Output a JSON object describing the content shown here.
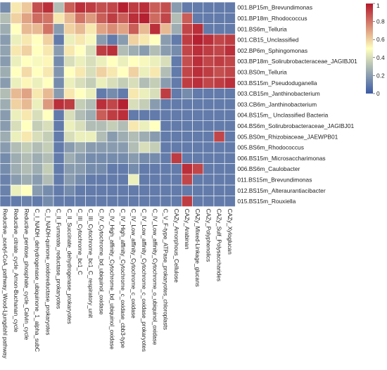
{
  "chart_data": {
    "type": "heatmap",
    "title": "",
    "xlabel": "",
    "ylabel": "",
    "rows": [
      "001.BP15m_Brevundimonas",
      "001.BP18m_Rhodococcus",
      "001.BS6m_Telluria",
      "001.CB15_Unclassified",
      "002.BP6m_Sphingomonas",
      "003.BP18m_Solirubrobacteraceae_JAGIBJ01",
      "003.BS0m_Telluria",
      "003.BS15m_Pseudoduganella",
      "003.CB15m_Janthinobacterium",
      "003.CB6m_Janthinobacterium",
      "004.BS15m_ Unclassified Bacteria",
      "004.BS6m_Solirubrobacteraceae_JAGIBJ01",
      "005.BS0m_Rhizobiaceae_JAEWPB01",
      "005.BS6m_Rhodococcus",
      "006.BS15m_Microsaccharimonas",
      "006.BS6m_Caulobacter",
      "011.BS15m_Brevundimonas",
      "012.BS15m_Alteraurantiacibacter",
      "015.BS15m_Rouxiella"
    ],
    "columns": [
      "Reductive_acetyl-CoA_pathway_Wood-Ljungdahl pathway",
      "Reductive_citrate_cycle_Arnon-Buchanan_cycle",
      "Reductive_pentose_phosphate_cycle_Calvin_cycle",
      "C_I_NADH_dehydrogenase_ubiquinone_1_alpha_subC",
      "C_I_NADH-quinone_oxidoreductase_prokaryotes",
      "C_II_Fumarate_reductase_prokaryotes",
      "C_II_Succinate_dehydrogenase_prokaryotes",
      "C_III_Cytochrome_bc1_C",
      "C_III_Cytochrome_bc1_C_respiratory_unit",
      "C_IV_Cytochrome_bd_ubiquinol_oxidase",
      "C_IV_High_affinity_Cytochrome_bd_ubiquinol_oxidase",
      "C_IV_High_affinity_Cytochrome_c_oxidase_cbb3-type",
      "C_IV_Low_affinity_Cytochrome_c_oxidase",
      "C_IV_Low_affinity_Cytochrome_c_oxidase_prokaryotes",
      "C_IV_Low_affinity_Cytochrome_o_ubiquinol_oxidase",
      "C_V_F-type_ATPase_prokaryotes_chloroplasts",
      "CAZy_Amorphous_Cellulose",
      "CAZy_Arabinan",
      "CAZy_Mixed-Linkage_glucans",
      "CAZy_Polyphenolics",
      "CAZy_Sulf_Polysaccharides",
      "CAZy_Xyloglucan"
    ],
    "values": [
      [
        0.15,
        0.55,
        0.62,
        0.88,
        0.95,
        0.3,
        0.85,
        0.95,
        0.92,
        0.88,
        0.9,
        0.98,
        0.92,
        0.95,
        0.85,
        0.88,
        0.2,
        0.1,
        0.1,
        0.1,
        0.1,
        0.1
      ],
      [
        0.3,
        0.6,
        0.7,
        0.82,
        0.8,
        0.55,
        0.65,
        0.8,
        0.72,
        0.85,
        0.92,
        0.85,
        0.95,
        0.98,
        0.82,
        0.9,
        0.3,
        0.85,
        0.1,
        0.1,
        0.1,
        0.1
      ],
      [
        0.25,
        0.5,
        0.65,
        0.65,
        0.8,
        0.2,
        0.6,
        0.65,
        0.55,
        0.7,
        0.75,
        0.7,
        0.85,
        0.65,
        0.95,
        0.65,
        0.25,
        0.9,
        0.95,
        0.1,
        0.1,
        0.1
      ],
      [
        0.2,
        0.45,
        0.55,
        0.5,
        0.6,
        0.1,
        0.45,
        0.55,
        0.48,
        0.2,
        0.1,
        0.2,
        0.6,
        0.55,
        0.5,
        0.2,
        0.1,
        0.92,
        0.98,
        0.95,
        0.9,
        0.92
      ],
      [
        0.22,
        0.55,
        0.6,
        0.5,
        0.55,
        0.2,
        0.55,
        0.5,
        0.4,
        0.92,
        0.95,
        0.3,
        0.25,
        0.2,
        0.3,
        0.2,
        0.15,
        0.9,
        0.95,
        0.92,
        0.9,
        0.95
      ],
      [
        0.2,
        0.45,
        0.5,
        0.48,
        0.52,
        0.15,
        0.4,
        0.45,
        0.4,
        0.45,
        0.5,
        0.45,
        0.5,
        0.48,
        0.45,
        0.4,
        0.1,
        0.88,
        0.95,
        0.9,
        0.92,
        0.9
      ],
      [
        0.25,
        0.5,
        0.58,
        0.5,
        0.55,
        0.18,
        0.5,
        0.55,
        0.4,
        0.6,
        0.55,
        0.5,
        0.6,
        0.45,
        0.55,
        0.3,
        0.1,
        0.9,
        0.95,
        0.92,
        0.88,
        0.9
      ],
      [
        0.2,
        0.45,
        0.52,
        0.45,
        0.5,
        0.15,
        0.45,
        0.4,
        0.35,
        0.45,
        0.4,
        0.35,
        0.4,
        0.3,
        0.35,
        0.2,
        0.1,
        0.92,
        0.95,
        0.9,
        0.92,
        0.95
      ],
      [
        0.3,
        0.65,
        0.7,
        0.55,
        0.65,
        0.2,
        0.55,
        0.5,
        0.45,
        0.1,
        0.15,
        0.1,
        0.55,
        0.45,
        0.4,
        0.92,
        0.1,
        0.15,
        0.1,
        0.1,
        0.1,
        0.1
      ],
      [
        0.25,
        0.6,
        0.65,
        0.45,
        0.72,
        0.95,
        0.92,
        0.35,
        0.3,
        0.95,
        0.9,
        0.98,
        0.4,
        0.35,
        0.2,
        0.1,
        0.1,
        0.1,
        0.1,
        0.1,
        0.1,
        0.1
      ],
      [
        0.2,
        0.45,
        0.55,
        0.4,
        0.5,
        0.1,
        0.4,
        0.3,
        0.25,
        0.85,
        0.92,
        0.95,
        0.1,
        0.1,
        0.1,
        0.1,
        0.1,
        0.1,
        0.1,
        0.1,
        0.1,
        0.1
      ],
      [
        0.2,
        0.4,
        0.5,
        0.35,
        0.4,
        0.1,
        0.45,
        0.4,
        0.3,
        0.3,
        0.35,
        0.3,
        0.55,
        0.45,
        0.5,
        0.1,
        0.1,
        0.1,
        0.1,
        0.1,
        0.1,
        0.1
      ],
      [
        0.25,
        0.45,
        0.55,
        0.4,
        0.35,
        0.1,
        0.4,
        0.45,
        0.45,
        0.3,
        0.2,
        0.25,
        0.3,
        0.25,
        0.2,
        0.1,
        0.1,
        0.1,
        0.1,
        0.1,
        0.9,
        0.1
      ],
      [
        0.2,
        0.3,
        0.35,
        0.3,
        0.35,
        0.1,
        0.2,
        0.25,
        0.2,
        0.2,
        0.2,
        0.2,
        0.3,
        0.4,
        0.35,
        0.1,
        0.1,
        0.1,
        0.1,
        0.1,
        0.1,
        0.1
      ],
      [
        0.15,
        0.25,
        0.3,
        0.25,
        0.3,
        0.1,
        0.25,
        0.2,
        0.15,
        0.15,
        0.15,
        0.15,
        0.2,
        0.15,
        0.15,
        0.1,
        0.92,
        0.1,
        0.1,
        0.1,
        0.1,
        0.1
      ],
      [
        0.15,
        0.25,
        0.3,
        0.25,
        0.35,
        0.1,
        0.2,
        0.2,
        0.15,
        0.15,
        0.1,
        0.1,
        0.15,
        0.1,
        0.1,
        0.1,
        0.1,
        0.95,
        0.9,
        0.1,
        0.1,
        0.1
      ],
      [
        0.12,
        0.2,
        0.25,
        0.2,
        0.3,
        0.1,
        0.2,
        0.15,
        0.1,
        0.1,
        0.1,
        0.1,
        0.45,
        0.1,
        0.1,
        0.1,
        0.1,
        0.9,
        0.1,
        0.1,
        0.1,
        0.1
      ],
      [
        0.12,
        0.45,
        0.5,
        0.2,
        0.15,
        0.1,
        0.15,
        0.1,
        0.1,
        0.1,
        0.1,
        0.1,
        0.1,
        0.1,
        0.1,
        0.1,
        0.1,
        0.1,
        0.1,
        0.1,
        0.1,
        0.1
      ],
      [
        0.1,
        0.1,
        0.12,
        0.1,
        0.15,
        0.1,
        0.1,
        0.1,
        0.1,
        0.1,
        0.1,
        0.1,
        0.1,
        0.1,
        0.1,
        0.1,
        0.1,
        0.92,
        0.1,
        0.1,
        0.1,
        0.1
      ]
    ],
    "colorscale": {
      "min": 0,
      "max": 1,
      "low": "#3b5aa5",
      "mid": "#ffffbf",
      "high": "#b2182b"
    },
    "colorbar_ticks": [
      0,
      0.2,
      0.4,
      0.6,
      0.8,
      1
    ],
    "legend_position": "top-right",
    "grid": true
  }
}
